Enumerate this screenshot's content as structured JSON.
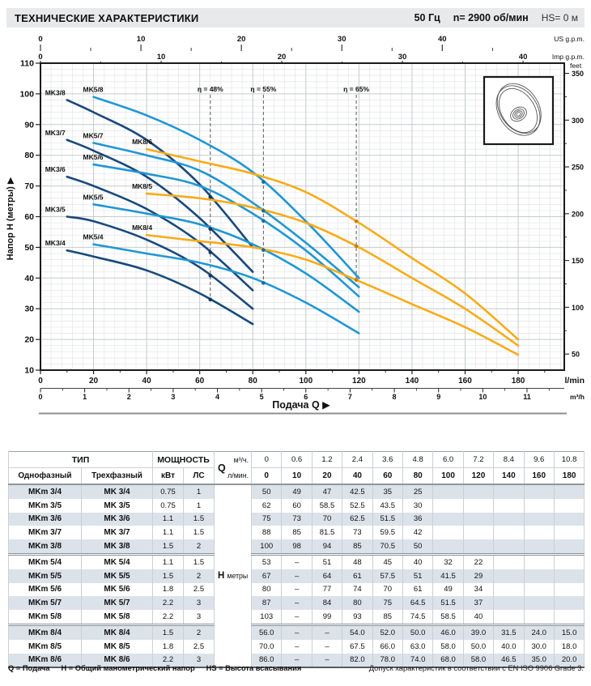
{
  "header": {
    "title": "ТЕХНИЧЕСКИЕ ХАРАКТЕРИСТИКИ",
    "frequency": "50 Гц",
    "speed": "n= 2900 об/мин",
    "suction": "HS= 0 м"
  },
  "chart_data": {
    "type": "line",
    "xlabel": "Подача Q",
    "ylabel": "Напор H (метры)",
    "x_unit_primary": "l/min",
    "x_unit_secondary": "m³/h",
    "x_unit_us": "US g.p.m.",
    "x_unit_imp": "Imp g.p.m.",
    "y_unit_right": "feet",
    "xlim_lmin": [
      0,
      197
    ],
    "ylim_m": [
      10,
      110
    ],
    "grid": "on",
    "axis_ticks": {
      "lmin": [
        0,
        20,
        40,
        60,
        80,
        100,
        120,
        140,
        160,
        180
      ],
      "m3h": [
        0,
        1,
        2,
        3,
        4,
        5,
        6,
        7,
        8,
        9,
        10,
        11
      ],
      "us_gpm": [
        0,
        10,
        20,
        30,
        40
      ],
      "imp_gpm": [
        0,
        10,
        20,
        30,
        40
      ],
      "head_m": [
        10,
        20,
        30,
        40,
        50,
        60,
        70,
        80,
        90,
        100,
        110
      ],
      "feet": [
        50,
        100,
        150,
        200,
        250,
        300,
        350
      ]
    },
    "colors": {
      "MK3": "#19497d",
      "MK5": "#2097d3",
      "MK8": "#f9ab17"
    },
    "marker_colors": {
      "MK3": "#0d3660",
      "MK5": "#0f6e9e",
      "MK8": "#c77f00"
    },
    "efficiency_lines": [
      {
        "label": "η = 48%",
        "q_lmin": 64,
        "family": "MK3"
      },
      {
        "label": "η = 55%",
        "q_lmin": 84,
        "family": "MK5"
      },
      {
        "label": "η = 65%",
        "q_lmin": 119,
        "family": "MK8"
      }
    ],
    "series": [
      {
        "name": "MK3/4",
        "family": "MK3",
        "points": [
          [
            10,
            49
          ],
          [
            20,
            47
          ],
          [
            40,
            42.5
          ],
          [
            60,
            35
          ],
          [
            80,
            25
          ]
        ]
      },
      {
        "name": "MK3/5",
        "family": "MK3",
        "points": [
          [
            10,
            60
          ],
          [
            20,
            58.5
          ],
          [
            40,
            52.5
          ],
          [
            60,
            43.5
          ],
          [
            80,
            30
          ]
        ]
      },
      {
        "name": "MK3/6",
        "family": "MK3",
        "points": [
          [
            10,
            73
          ],
          [
            20,
            70
          ],
          [
            40,
            62.5
          ],
          [
            60,
            51.5
          ],
          [
            80,
            36
          ]
        ]
      },
      {
        "name": "MK3/7",
        "family": "MK3",
        "points": [
          [
            10,
            85
          ],
          [
            20,
            81.5
          ],
          [
            40,
            73
          ],
          [
            60,
            59.5
          ],
          [
            80,
            42
          ]
        ]
      },
      {
        "name": "MK3/8",
        "family": "MK3",
        "points": [
          [
            10,
            98
          ],
          [
            20,
            94
          ],
          [
            40,
            85
          ],
          [
            60,
            70.5
          ],
          [
            80,
            50
          ]
        ]
      },
      {
        "name": "MK5/4",
        "family": "MK5",
        "points": [
          [
            20,
            51
          ],
          [
            40,
            48
          ],
          [
            60,
            45
          ],
          [
            80,
            40
          ],
          [
            100,
            32
          ],
          [
            120,
            22
          ]
        ]
      },
      {
        "name": "MK5/5",
        "family": "MK5",
        "points": [
          [
            20,
            64
          ],
          [
            40,
            61
          ],
          [
            60,
            57.5
          ],
          [
            80,
            51
          ],
          [
            100,
            41.5
          ],
          [
            120,
            29
          ]
        ]
      },
      {
        "name": "MK5/6",
        "family": "MK5",
        "points": [
          [
            20,
            77
          ],
          [
            40,
            74
          ],
          [
            60,
            70
          ],
          [
            80,
            61
          ],
          [
            100,
            49
          ],
          [
            120,
            34
          ]
        ]
      },
      {
        "name": "MK5/7",
        "family": "MK5",
        "points": [
          [
            20,
            84
          ],
          [
            40,
            80
          ],
          [
            60,
            75
          ],
          [
            80,
            64.5
          ],
          [
            100,
            51.5
          ],
          [
            120,
            37
          ]
        ]
      },
      {
        "name": "MK5/8",
        "family": "MK5",
        "points": [
          [
            20,
            99
          ],
          [
            40,
            93
          ],
          [
            60,
            85
          ],
          [
            80,
            74.5
          ],
          [
            100,
            58.5
          ],
          [
            120,
            40
          ]
        ]
      },
      {
        "name": "MK8/4",
        "family": "MK8",
        "points": [
          [
            40,
            54
          ],
          [
            60,
            52
          ],
          [
            80,
            50
          ],
          [
            100,
            46
          ],
          [
            120,
            39
          ],
          [
            140,
            31.5
          ],
          [
            160,
            24
          ],
          [
            180,
            15
          ]
        ]
      },
      {
        "name": "MK8/5",
        "family": "MK8",
        "points": [
          [
            40,
            67.5
          ],
          [
            60,
            66
          ],
          [
            80,
            63
          ],
          [
            100,
            58
          ],
          [
            120,
            50
          ],
          [
            140,
            40
          ],
          [
            160,
            30
          ],
          [
            180,
            18
          ]
        ]
      },
      {
        "name": "MK8/6",
        "family": "MK8",
        "points": [
          [
            40,
            82
          ],
          [
            60,
            78
          ],
          [
            80,
            74
          ],
          [
            100,
            68
          ],
          [
            120,
            58
          ],
          [
            140,
            46.5
          ],
          [
            160,
            35
          ],
          [
            180,
            20
          ]
        ]
      }
    ]
  },
  "table": {
    "header": {
      "type": "ТИП",
      "single_phase": "Однофазный",
      "three_phase": "Трехфазный",
      "power": "МОЩНОСТЬ",
      "kw": "кВт",
      "hp": "ЛС",
      "q": "Q",
      "m3h": "м³/ч.",
      "lmin": "л/мин.",
      "head_symbol": "Н",
      "head_unit": "метры"
    },
    "q_m3h": [
      "0",
      "0.6",
      "1.2",
      "2.4",
      "3.6",
      "4.8",
      "6.0",
      "7.2",
      "8.4",
      "9.6",
      "10.8"
    ],
    "q_lmin": [
      "0",
      "10",
      "20",
      "40",
      "60",
      "80",
      "100",
      "120",
      "140",
      "160",
      "180"
    ],
    "rows": [
      {
        "single": "MKm 3/4",
        "three": "MK 3/4",
        "kw": "0.75",
        "hp": "1",
        "group_start": false,
        "head": [
          "50",
          "49",
          "47",
          "42.5",
          "35",
          "25",
          "",
          "",
          "",
          "",
          ""
        ]
      },
      {
        "single": "MKm 3/5",
        "three": "MK 3/5",
        "kw": "0.75",
        "hp": "1",
        "group_start": false,
        "head": [
          "62",
          "60",
          "58.5",
          "52.5",
          "43.5",
          "30",
          "",
          "",
          "",
          "",
          ""
        ]
      },
      {
        "single": "MKm 3/6",
        "three": "MK 3/6",
        "kw": "1.1",
        "hp": "1.5",
        "group_start": false,
        "head": [
          "75",
          "73",
          "70",
          "62.5",
          "51.5",
          "36",
          "",
          "",
          "",
          "",
          ""
        ]
      },
      {
        "single": "MKm 3/7",
        "three": "MK 3/7",
        "kw": "1.1",
        "hp": "1.5",
        "group_start": false,
        "head": [
          "88",
          "85",
          "81.5",
          "73",
          "59.5",
          "42",
          "",
          "",
          "",
          "",
          ""
        ]
      },
      {
        "single": "MKm 3/8",
        "three": "MK 3/8",
        "kw": "1.5",
        "hp": "2",
        "group_start": false,
        "head": [
          "100",
          "98",
          "94",
          "85",
          "70.5",
          "50",
          "",
          "",
          "",
          "",
          ""
        ]
      },
      {
        "single": "MKm 5/4",
        "three": "MK 5/4",
        "kw": "1.1",
        "hp": "1.5",
        "group_start": true,
        "head": [
          "53",
          "–",
          "51",
          "48",
          "45",
          "40",
          "32",
          "22",
          "",
          "",
          ""
        ]
      },
      {
        "single": "MKm 5/5",
        "three": "MK 5/5",
        "kw": "1.5",
        "hp": "2",
        "group_start": false,
        "head": [
          "67",
          "–",
          "64",
          "61",
          "57.5",
          "51",
          "41.5",
          "29",
          "",
          "",
          ""
        ]
      },
      {
        "single": "MKm 5/6",
        "three": "MK 5/6",
        "kw": "1.8",
        "hp": "2.5",
        "group_start": false,
        "head": [
          "80",
          "–",
          "77",
          "74",
          "70",
          "61",
          "49",
          "34",
          "",
          "",
          ""
        ]
      },
      {
        "single": "MKm 5/7",
        "three": "MK 5/7",
        "kw": "2.2",
        "hp": "3",
        "group_start": false,
        "head": [
          "87",
          "–",
          "84",
          "80",
          "75",
          "64.5",
          "51.5",
          "37",
          "",
          "",
          ""
        ]
      },
      {
        "single": "MKm 5/8",
        "three": "MK 5/8",
        "kw": "2.2",
        "hp": "3",
        "group_start": false,
        "head": [
          "103",
          "–",
          "99",
          "93",
          "85",
          "74.5",
          "58.5",
          "40",
          "",
          "",
          ""
        ]
      },
      {
        "single": "MKm 8/4",
        "three": "MK 8/4",
        "kw": "1.5",
        "hp": "2",
        "group_start": true,
        "head": [
          "56.0",
          "–",
          "–",
          "54.0",
          "52.0",
          "50.0",
          "46.0",
          "39.0",
          "31.5",
          "24.0",
          "15.0"
        ]
      },
      {
        "single": "MKm 8/5",
        "three": "MK 8/5",
        "kw": "1.8",
        "hp": "2.5",
        "group_start": false,
        "head": [
          "70.0",
          "–",
          "–",
          "67.5",
          "66.0",
          "63.0",
          "58.0",
          "50.0",
          "40.0",
          "30.0",
          "18.0"
        ]
      },
      {
        "single": "MKm 8/6",
        "three": "MK 8/6",
        "kw": "2.2",
        "hp": "3",
        "group_start": false,
        "head": [
          "86.0",
          "–",
          "–",
          "82.0",
          "78.0",
          "74.0",
          "68.0",
          "58.0",
          "46.5",
          "35.0",
          "20.0"
        ]
      }
    ]
  },
  "footer": {
    "legend": [
      "Q = Подача",
      "H = Общий манометрический напор",
      "HS = Высота всасывания"
    ],
    "tolerance": "Допуск характеристик в соответствии с EN ISO 9906 Grade 3."
  }
}
